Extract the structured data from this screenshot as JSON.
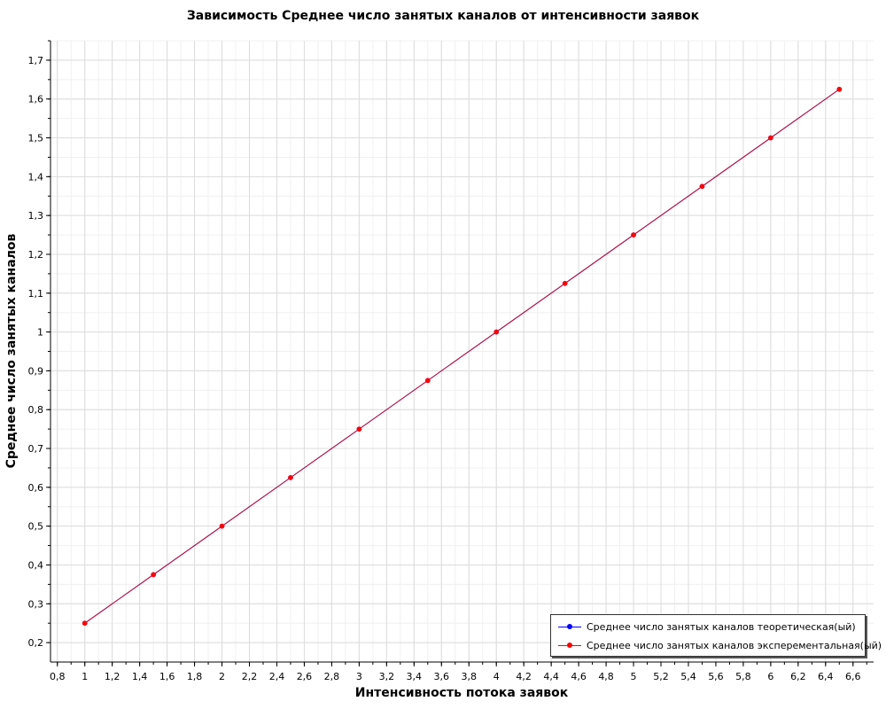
{
  "chart_data": {
    "type": "line",
    "title": "Зависимость Среднее число занятых каналов от интенсивности заявок",
    "xlabel": "Интенсивность потока заявок",
    "ylabel": "Среднее число занятых каналов",
    "xlim": [
      0.75,
      6.75
    ],
    "ylim": [
      0.15,
      1.75
    ],
    "x_ticks": [
      "0,8",
      "1",
      "1,2",
      "1,4",
      "1,6",
      "1,8",
      "2",
      "2,2",
      "2,4",
      "2,6",
      "2,8",
      "3",
      "3,2",
      "3,4",
      "3,6",
      "3,8",
      "4",
      "4,2",
      "4,4",
      "4,6",
      "4,8",
      "5",
      "5,2",
      "5,4",
      "5,6",
      "5,8",
      "6",
      "6,2",
      "6,4",
      "6,6"
    ],
    "y_ticks": [
      "0,2",
      "0,3",
      "0,4",
      "0,5",
      "0,6",
      "0,7",
      "0,8",
      "0,9",
      "1",
      "1,1",
      "1,2",
      "1,3",
      "1,4",
      "1,5",
      "1,6",
      "1,7"
    ],
    "grid": true,
    "legend_position": "bottom-right",
    "x": [
      1,
      1.5,
      2,
      2.5,
      3,
      3.5,
      4,
      4.5,
      5,
      5.5,
      6,
      6.5
    ],
    "series": [
      {
        "name": "Среднее число занятых каналов теоретическая(ый)",
        "color": "#0000ff",
        "values": [
          0.25,
          0.375,
          0.5,
          0.625,
          0.75,
          0.875,
          1.0,
          1.125,
          1.25,
          1.375,
          1.5,
          1.625
        ]
      },
      {
        "name": "Среднее число занятых каналов эксперементальная(ый)",
        "color": "#ff0000",
        "values": [
          0.25,
          0.375,
          0.5,
          0.625,
          0.75,
          0.875,
          1.0,
          1.125,
          1.25,
          1.375,
          1.5,
          1.625
        ]
      }
    ]
  }
}
